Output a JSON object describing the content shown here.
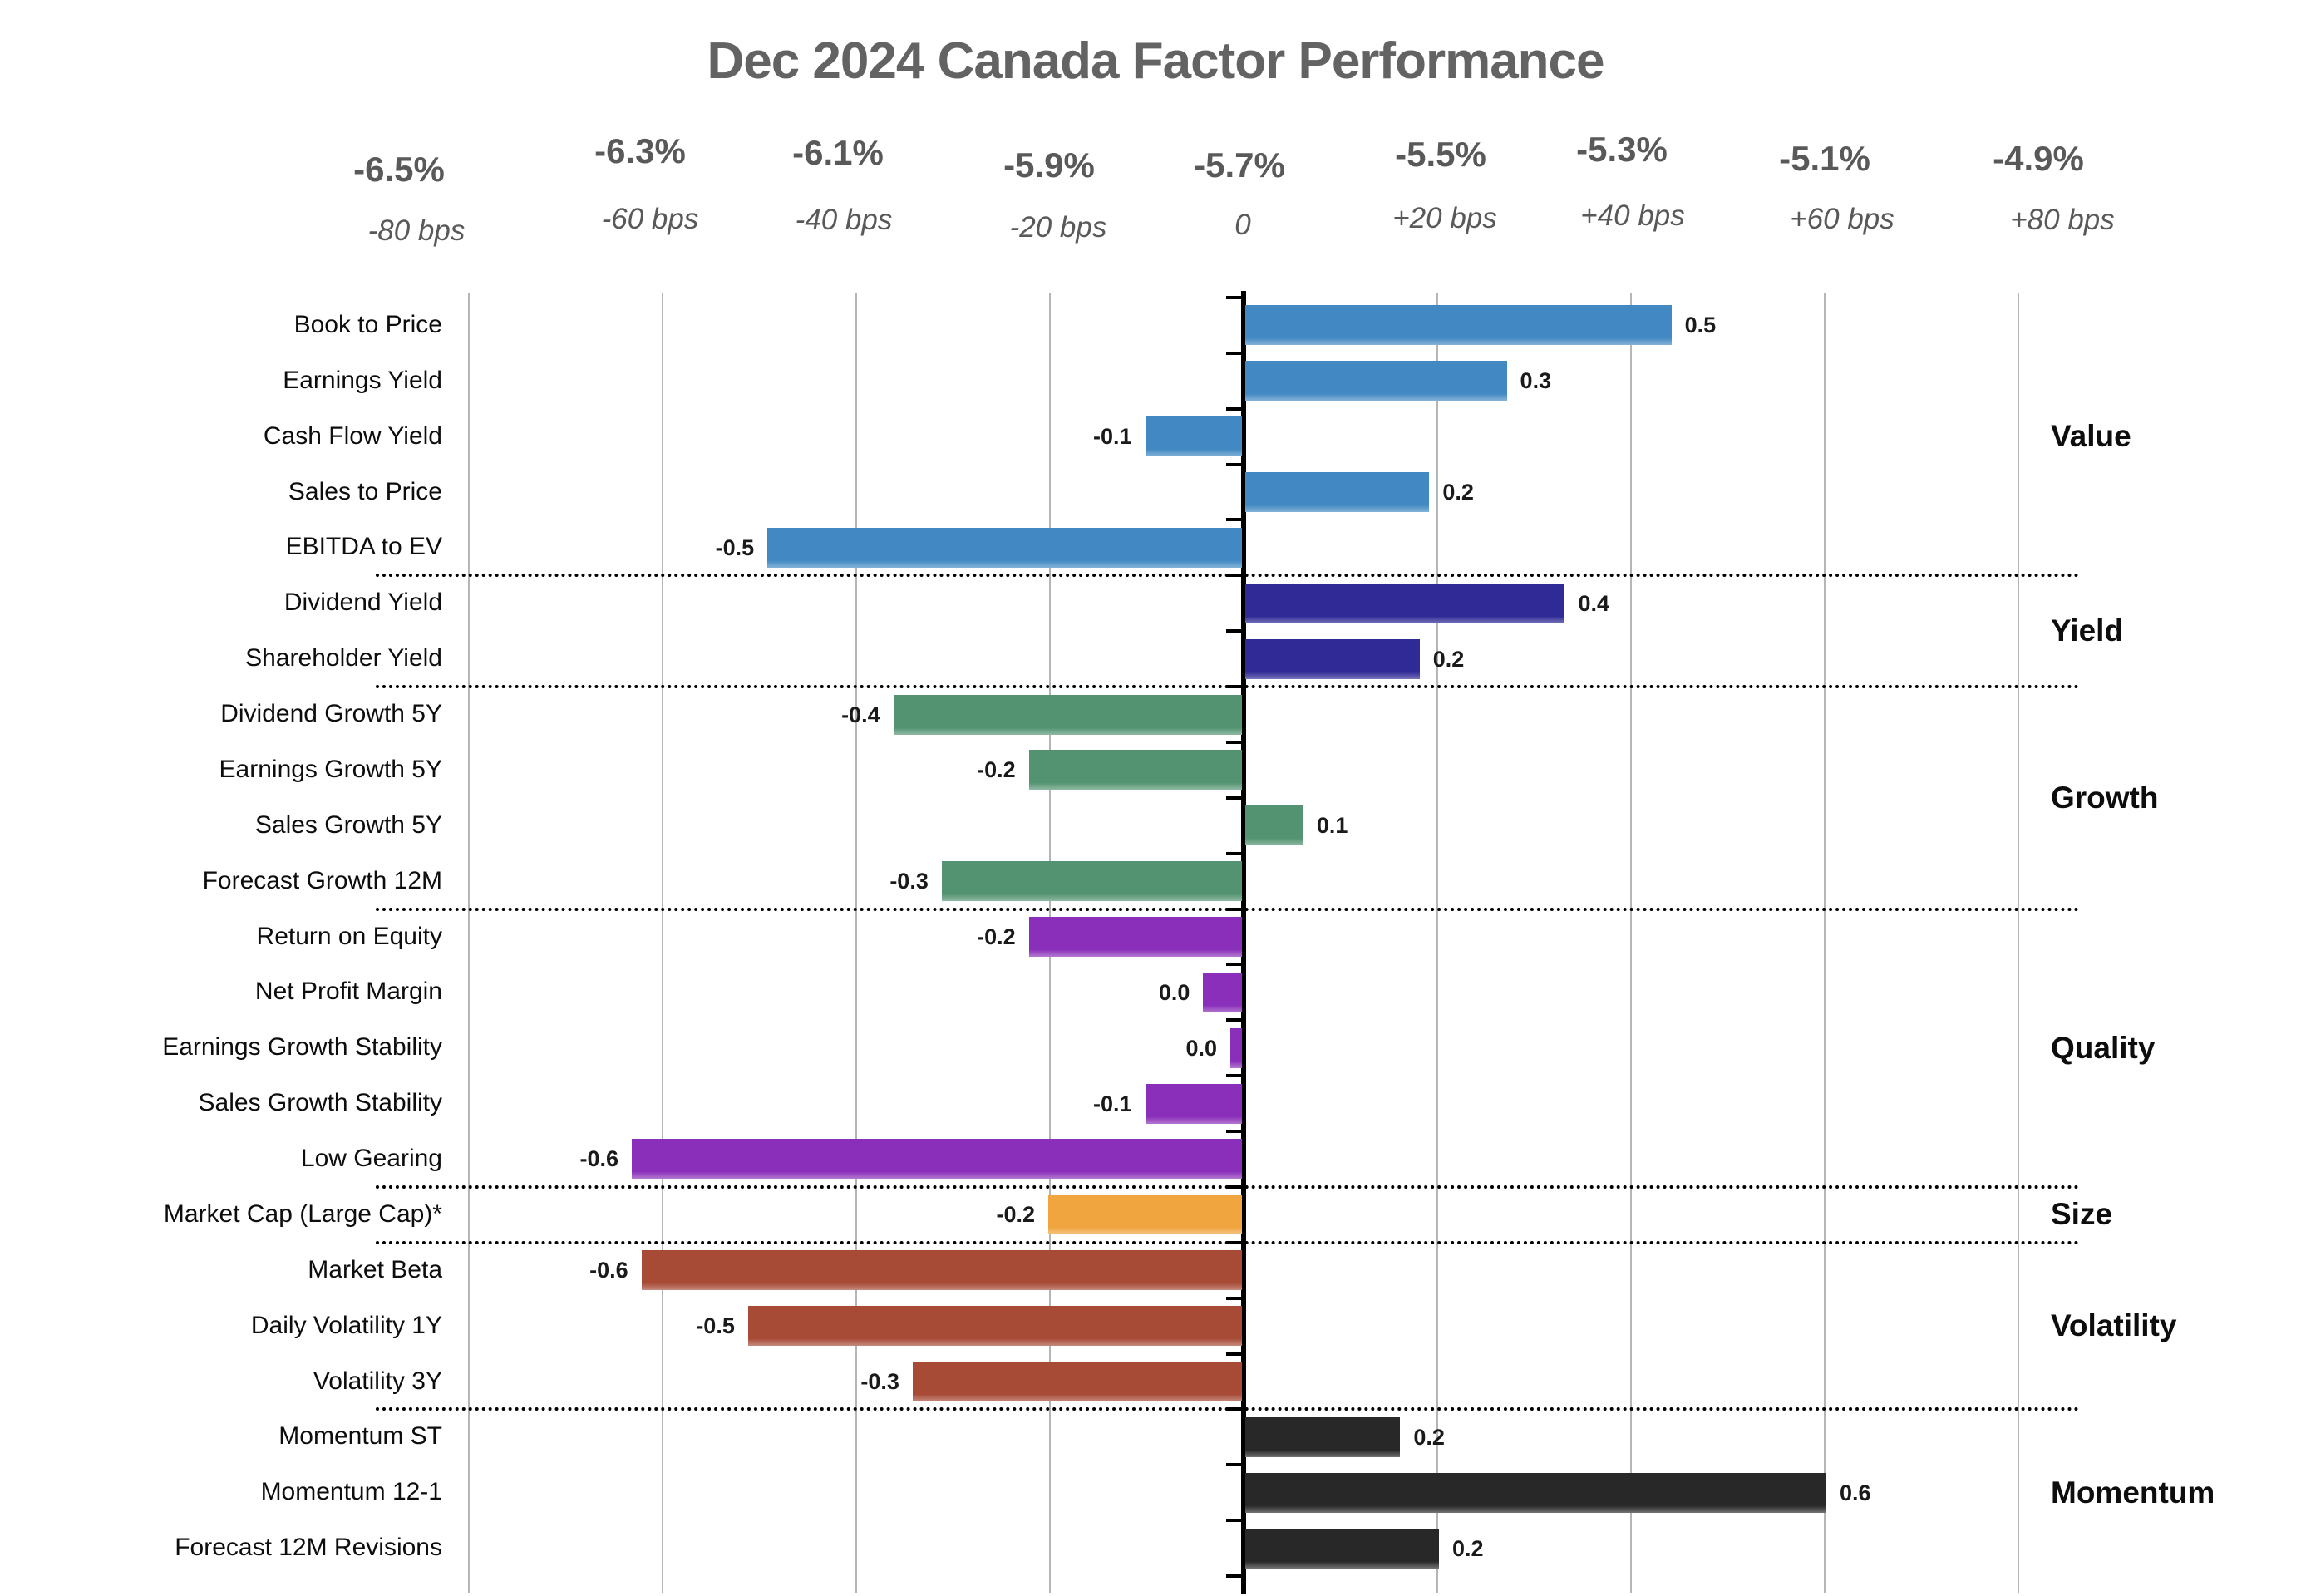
{
  "title": "Dec 2024 Canada Factor Performance",
  "chart_data": {
    "type": "bar",
    "orientation": "horizontal",
    "title": "Dec 2024 Canada Factor Performance",
    "top_axis": {
      "percent_labels": [
        "-6.5%",
        "-6.3%",
        "-6.1%",
        "-5.9%",
        "-5.7%",
        "-5.5%",
        "-5.3%",
        "-5.1%",
        "-4.9%"
      ],
      "bps_labels": [
        "-80 bps",
        "-60 bps",
        "-40 bps",
        "-20 bps",
        "0",
        "+20 bps",
        "+40 bps",
        "+60 bps",
        "+80 bps"
      ],
      "bps_range": [
        -80,
        80
      ],
      "gridline_step_bps": 20
    },
    "legend_position": "right",
    "grid": true,
    "sections": [
      {
        "name": "Value",
        "color": "#4289c3",
        "rows": [
          {
            "label": "Book to Price",
            "value": 0.5,
            "value_label": "0.5",
            "bar_bps": 44
          },
          {
            "label": "Earnings Yield",
            "value": 0.3,
            "value_label": "0.3",
            "bar_bps": 27
          },
          {
            "label": "Cash Flow Yield",
            "value": -0.1,
            "value_label": "-0.1",
            "bar_bps": -10
          },
          {
            "label": "Sales to Price",
            "value": 0.2,
            "value_label": "0.2",
            "bar_bps": 19
          },
          {
            "label": "EBITDA to EV",
            "value": -0.5,
            "value_label": "-0.5",
            "bar_bps": -49
          }
        ]
      },
      {
        "name": "Yield",
        "color": "#2f2a96",
        "rows": [
          {
            "label": "Dividend Yield",
            "value": 0.4,
            "value_label": "0.4",
            "bar_bps": 33
          },
          {
            "label": "Shareholder Yield",
            "value": 0.2,
            "value_label": "0.2",
            "bar_bps": 18
          }
        ]
      },
      {
        "name": "Growth",
        "color": "#539371",
        "rows": [
          {
            "label": "Dividend Growth 5Y",
            "value": -0.4,
            "value_label": "-0.4",
            "bar_bps": -36
          },
          {
            "label": "Earnings Growth 5Y",
            "value": -0.2,
            "value_label": "-0.2",
            "bar_bps": -22
          },
          {
            "label": "Sales Growth 5Y",
            "value": 0.1,
            "value_label": "0.1",
            "bar_bps": 6
          },
          {
            "label": "Forecast Growth 12M",
            "value": -0.3,
            "value_label": "-0.3",
            "bar_bps": -31
          }
        ]
      },
      {
        "name": "Quality",
        "color": "#8a2fb9",
        "rows": [
          {
            "label": "Return on Equity",
            "value": -0.2,
            "value_label": "-0.2",
            "bar_bps": -22
          },
          {
            "label": "Net Profit Margin",
            "value": 0.0,
            "value_label": "0.0",
            "bar_bps": -4
          },
          {
            "label": "Earnings Growth Stability",
            "value": 0.0,
            "value_label": "0.0",
            "bar_bps": -1.2
          },
          {
            "label": "Sales Growth Stability",
            "value": -0.1,
            "value_label": "-0.1",
            "bar_bps": -10
          },
          {
            "label": "Low Gearing",
            "value": -0.6,
            "value_label": "-0.6",
            "bar_bps": -63
          }
        ]
      },
      {
        "name": "Size",
        "color": "#f0a53f",
        "rows": [
          {
            "label": "Market Cap (Large Cap)*",
            "value": -0.2,
            "value_label": "-0.2",
            "bar_bps": -20
          }
        ]
      },
      {
        "name": "Volatility",
        "color": "#a74b37",
        "rows": [
          {
            "label": "Market Beta",
            "value": -0.6,
            "value_label": "-0.6",
            "bar_bps": -62
          },
          {
            "label": "Daily Volatility 1Y",
            "value": -0.5,
            "value_label": "-0.5",
            "bar_bps": -51
          },
          {
            "label": "Volatility 3Y",
            "value": -0.3,
            "value_label": "-0.3",
            "bar_bps": -34
          }
        ]
      },
      {
        "name": "Momentum",
        "color": "#282828",
        "rows": [
          {
            "label": "Momentum ST",
            "value": 0.2,
            "value_label": "0.2",
            "bar_bps": 16
          },
          {
            "label": "Momentum 12-1",
            "value": 0.6,
            "value_label": "0.6",
            "bar_bps": 60
          },
          {
            "label": "Forecast 12M Revisions",
            "value": 0.2,
            "value_label": "0.2",
            "bar_bps": 20
          }
        ]
      }
    ],
    "style_colors": {
      "title_gray": "#636363",
      "axis_label_gray": "#595959",
      "gridline_gray": "#b5b5b5",
      "axis_black": "#000000"
    }
  }
}
